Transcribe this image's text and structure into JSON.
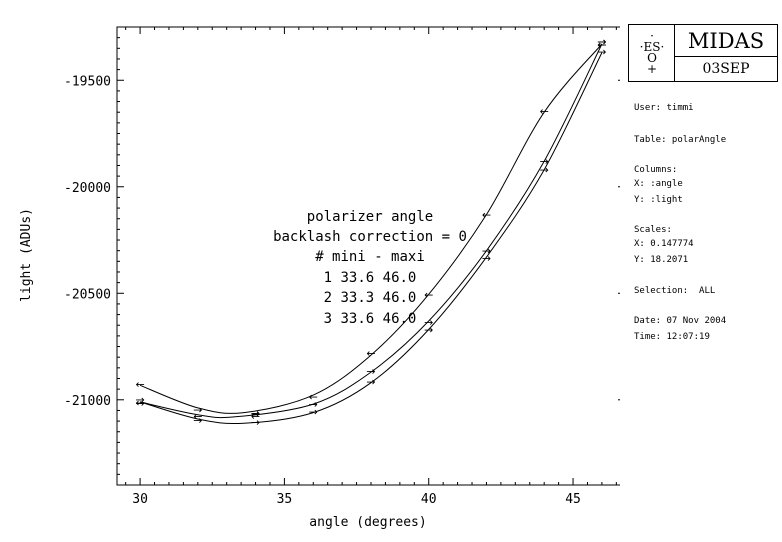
{
  "chart_data": {
    "type": "line",
    "xlabel": "angle (degrees)",
    "ylabel": "light (ADUs)",
    "xlim": [
      29.2,
      46.8
    ],
    "ylim": [
      -21400,
      -19250
    ],
    "xticks": [
      30,
      35,
      40,
      45
    ],
    "yticks": [
      -21000,
      -20500,
      -20000,
      -19500
    ],
    "ytick_labels": [
      "-21000",
      "-20500",
      "-20000",
      "-19500"
    ],
    "annotation": [
      "polarizer angle",
      "backlash correction = 0",
      "# mini - maxi",
      "1 33.6 46.0",
      "2 33.3 46.0",
      "3 33.6 46.0"
    ],
    "series": [
      {
        "curve": [
          [
            30,
            -20932
          ],
          [
            32,
            -21038
          ],
          [
            33.6,
            -21060
          ],
          [
            36,
            -20978
          ],
          [
            38,
            -20790
          ],
          [
            40,
            -20505
          ],
          [
            42,
            -20130
          ],
          [
            44,
            -19650
          ],
          [
            46,
            -19330
          ]
        ],
        "points": [
          {
            "x": 30,
            "y": -20925,
            "dir": "left"
          },
          {
            "x": 32,
            "y": -21045,
            "dir": "right"
          },
          {
            "x": 34,
            "y": -21070,
            "dir": "both"
          },
          {
            "x": 36,
            "y": -20985,
            "dir": "left"
          },
          {
            "x": 38,
            "y": -20780,
            "dir": "left"
          },
          {
            "x": 40,
            "y": -20505,
            "dir": "left"
          },
          {
            "x": 42,
            "y": -20130,
            "dir": "left"
          },
          {
            "x": 44,
            "y": -19645,
            "dir": "left"
          },
          {
            "x": 46,
            "y": -19325,
            "dir": "both"
          }
        ]
      },
      {
        "curve": [
          [
            30,
            -21010
          ],
          [
            32,
            -21070
          ],
          [
            33.3,
            -21080
          ],
          [
            36,
            -21020
          ],
          [
            38,
            -20870
          ],
          [
            40,
            -20630
          ],
          [
            42,
            -20300
          ],
          [
            44,
            -19880
          ],
          [
            46,
            -19330
          ]
        ],
        "points": [
          {
            "x": 30,
            "y": -21005,
            "dir": "both"
          },
          {
            "x": 32,
            "y": -21075,
            "dir": "left"
          },
          {
            "x": 34,
            "y": -21065,
            "dir": "right"
          },
          {
            "x": 36,
            "y": -21020,
            "dir": "right"
          },
          {
            "x": 38,
            "y": -20865,
            "dir": "right"
          },
          {
            "x": 40,
            "y": -20635,
            "dir": "right"
          },
          {
            "x": 42,
            "y": -20300,
            "dir": "right"
          },
          {
            "x": 44,
            "y": -19880,
            "dir": "right"
          },
          {
            "x": 46,
            "y": -19325,
            "dir": "both"
          }
        ]
      },
      {
        "curve": [
          [
            30,
            -21010
          ],
          [
            32,
            -21090
          ],
          [
            33.6,
            -21110
          ],
          [
            36,
            -21060
          ],
          [
            38,
            -20920
          ],
          [
            40,
            -20670
          ],
          [
            42,
            -20330
          ],
          [
            44,
            -19920
          ],
          [
            46,
            -19370
          ]
        ],
        "points": [
          {
            "x": 30,
            "y": -21015,
            "dir": "right"
          },
          {
            "x": 32,
            "y": -21095,
            "dir": "right"
          },
          {
            "x": 34,
            "y": -21105,
            "dir": "right"
          },
          {
            "x": 36,
            "y": -21055,
            "dir": "right"
          },
          {
            "x": 38,
            "y": -20915,
            "dir": "right"
          },
          {
            "x": 40,
            "y": -20670,
            "dir": "right"
          },
          {
            "x": 42,
            "y": -20335,
            "dir": "right"
          },
          {
            "x": 44,
            "y": -19920,
            "dir": "right"
          },
          {
            "x": 46,
            "y": -19365,
            "dir": "right"
          }
        ]
      }
    ]
  },
  "sidebar": {
    "logo_text": "ES",
    "logo_glyph": "O",
    "product_name": "MIDAS",
    "version": "03SEP",
    "user": "User: timmi",
    "table": "Table: polarAngle",
    "columns_label": "Columns:",
    "column_x": "X: :angle",
    "column_y": "Y: :light",
    "scales_label": "Scales:",
    "scale_x": "X: 0.147774",
    "scale_y": "Y: 18.2071",
    "selection": "Selection:  ALL",
    "date": "Date: 07 Nov 2004",
    "time": "Time: 12:07:19"
  }
}
